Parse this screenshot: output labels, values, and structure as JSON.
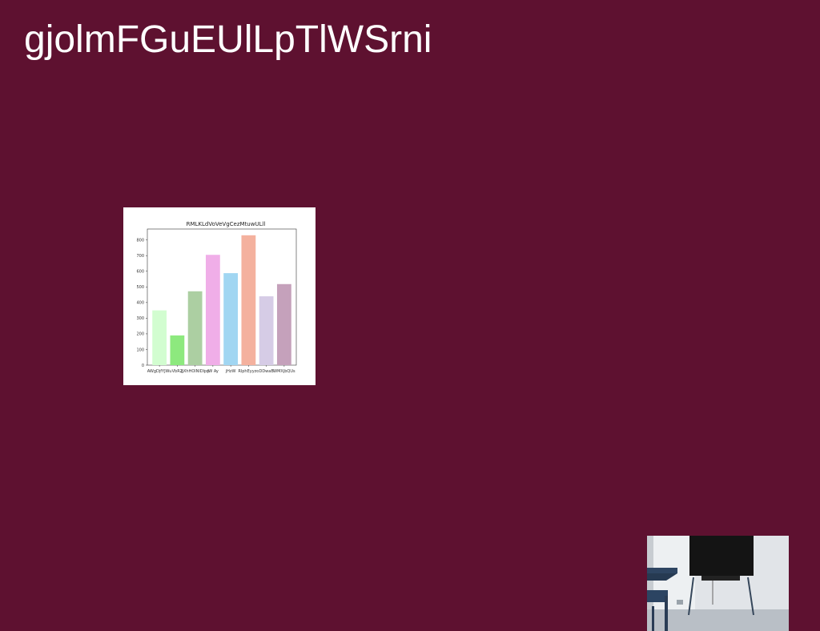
{
  "page": {
    "title": "gjolmFGuEUlLpTlWSrni"
  },
  "colors": {
    "background": "#5e1130",
    "title_text": "#ffffff"
  },
  "chart_data": {
    "type": "bar",
    "title": "RMLKLdVoVeVgCezMtuwULll",
    "categories": [
      "AWgDjfYJWu",
      "VbRZ",
      "gXhHOlNlDlpn",
      "jW Ay",
      "jHzW",
      "RlphEyyzo",
      "DDwaB",
      "WMXjbQUs"
    ],
    "values": [
      350,
      190,
      472,
      705,
      588,
      830,
      440,
      518
    ],
    "colors": [
      "#d2fdd0",
      "#8de97e",
      "#accfa2",
      "#f0aee8",
      "#a1d6f2",
      "#f4b19e",
      "#d6cce6",
      "#c5a1bb"
    ],
    "xlabel": "",
    "ylabel": "",
    "ylim": [
      0,
      870
    ],
    "yticks": [
      0,
      100,
      200,
      300,
      400,
      500,
      600,
      700,
      800
    ],
    "grid": false,
    "legend": "none"
  },
  "photo": {
    "subject": "room-with-tv-and-chairs"
  }
}
